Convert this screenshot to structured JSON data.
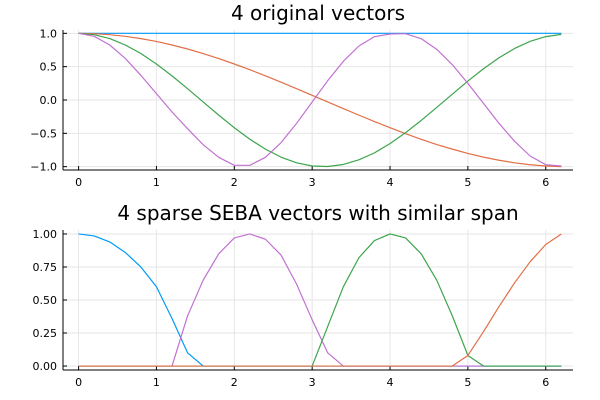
{
  "chart_data": [
    {
      "type": "line",
      "title": "4 original vectors",
      "xlabel": "",
      "ylabel": "",
      "xlim": [
        -0.2,
        6.35
      ],
      "ylim": [
        -1.05,
        1.05
      ],
      "xticks": [
        0,
        1,
        2,
        3,
        4,
        5,
        6
      ],
      "xtick_labels": [
        "0",
        "1",
        "2",
        "3",
        "4",
        "5",
        "6"
      ],
      "yticks": [
        -1.0,
        -0.5,
        0.0,
        0.5,
        1.0
      ],
      "ytick_labels": [
        "−1.0",
        "−0.5",
        "0.0",
        "0.5",
        "1.0"
      ],
      "grid": true,
      "legend": "none",
      "x": [
        0,
        0.2,
        0.4,
        0.6,
        0.8,
        1.0,
        1.2,
        1.4,
        1.6,
        1.8,
        2.0,
        2.2,
        2.4,
        2.6,
        2.8,
        3.0,
        3.2,
        3.4,
        3.6,
        3.8,
        4.0,
        4.2,
        4.4,
        4.6,
        4.8,
        5.0,
        5.2,
        5.4,
        5.6,
        5.8,
        6.0,
        6.2
      ],
      "series": [
        {
          "color": "#009AFA",
          "values": [
            1,
            1,
            1,
            1,
            1,
            1,
            1,
            1,
            1,
            1,
            1,
            1,
            1,
            1,
            1,
            1,
            1,
            1,
            1,
            1,
            1,
            1,
            1,
            1,
            1,
            1,
            1,
            1,
            1,
            1,
            1,
            1
          ]
        },
        {
          "color": "#E26F46",
          "values": [
            1.0,
            0.995,
            0.98,
            0.955,
            0.921,
            0.878,
            0.825,
            0.765,
            0.697,
            0.622,
            0.54,
            0.454,
            0.362,
            0.267,
            0.17,
            0.071,
            -0.029,
            -0.129,
            -0.227,
            -0.323,
            -0.416,
            -0.505,
            -0.589,
            -0.668,
            -0.737,
            -0.801,
            -0.857,
            -0.904,
            -0.942,
            -0.971,
            -0.99,
            -0.999
          ]
        },
        {
          "color": "#3DA44D",
          "values": [
            1.0,
            0.98,
            0.921,
            0.825,
            0.697,
            0.54,
            0.362,
            0.17,
            -0.029,
            -0.227,
            -0.416,
            -0.589,
            -0.737,
            -0.857,
            -0.942,
            -0.99,
            -0.998,
            -0.967,
            -0.897,
            -0.793,
            -0.654,
            -0.49,
            -0.307,
            -0.112,
            0.087,
            0.284,
            0.469,
            0.634,
            0.773,
            0.88,
            0.951,
            0.984
          ]
        },
        {
          "color": "#C271D2",
          "values": [
            1.0,
            0.955,
            0.825,
            0.623,
            0.37,
            0.095,
            -0.18,
            -0.43,
            -0.67,
            -0.86,
            -0.98,
            -0.98,
            -0.86,
            -0.64,
            -0.35,
            -0.03,
            0.29,
            0.58,
            0.81,
            0.95,
            0.99,
            0.995,
            0.92,
            0.76,
            0.53,
            0.25,
            -0.05,
            -0.35,
            -0.62,
            -0.84,
            -0.97,
            -0.99
          ]
        }
      ]
    },
    {
      "type": "line",
      "title": "4 sparse SEBA vectors with similar span",
      "xlabel": "",
      "ylabel": "",
      "xlim": [
        -0.2,
        6.35
      ],
      "ylim": [
        -0.03,
        1.03
      ],
      "xticks": [
        0,
        1,
        2,
        3,
        4,
        5,
        6
      ],
      "xtick_labels": [
        "0",
        "1",
        "2",
        "3",
        "4",
        "5",
        "6"
      ],
      "yticks": [
        0.0,
        0.25,
        0.5,
        0.75,
        1.0
      ],
      "ytick_labels": [
        "0.00",
        "0.25",
        "0.50",
        "0.75",
        "1.00"
      ],
      "grid": true,
      "legend": "none",
      "x": [
        0,
        0.2,
        0.4,
        0.6,
        0.8,
        1.0,
        1.2,
        1.4,
        1.6,
        1.8,
        2.0,
        2.2,
        2.4,
        2.6,
        2.8,
        3.0,
        3.2,
        3.4,
        3.6,
        3.8,
        4.0,
        4.2,
        4.4,
        4.6,
        4.8,
        5.0,
        5.2,
        5.4,
        5.6,
        5.8,
        6.0,
        6.2
      ],
      "series": [
        {
          "color": "#009AFA",
          "values": [
            1.0,
            0.985,
            0.94,
            0.86,
            0.75,
            0.6,
            0.36,
            0.1,
            0,
            0,
            0,
            0,
            0,
            0,
            0,
            0,
            0,
            0,
            0,
            0,
            0,
            0,
            0,
            0,
            0,
            0,
            0,
            0,
            0,
            0,
            0,
            0
          ]
        },
        {
          "color": "#C271D2",
          "values": [
            0,
            0,
            0,
            0,
            0,
            0,
            0.0,
            0.38,
            0.65,
            0.85,
            0.97,
            1.0,
            0.96,
            0.84,
            0.62,
            0.35,
            0.1,
            0,
            0,
            0,
            0,
            0,
            0,
            0,
            0,
            0,
            0,
            0,
            0,
            0,
            0,
            0
          ]
        },
        {
          "color": "#3DA44D",
          "values": [
            0,
            0,
            0,
            0,
            0,
            0,
            0,
            0,
            0,
            0,
            0,
            0,
            0,
            0,
            0,
            0.0,
            0.3,
            0.6,
            0.82,
            0.95,
            1.0,
            0.97,
            0.85,
            0.65,
            0.38,
            0.08,
            0,
            0,
            0,
            0,
            0,
            0
          ]
        },
        {
          "color": "#E26F46",
          "values": [
            0,
            0,
            0,
            0,
            0,
            0,
            0,
            0,
            0,
            0,
            0,
            0,
            0,
            0,
            0,
            0,
            0,
            0,
            0,
            0,
            0,
            0,
            0,
            0,
            0,
            0.08,
            0.26,
            0.45,
            0.63,
            0.79,
            0.92,
            1.0
          ]
        }
      ]
    }
  ]
}
